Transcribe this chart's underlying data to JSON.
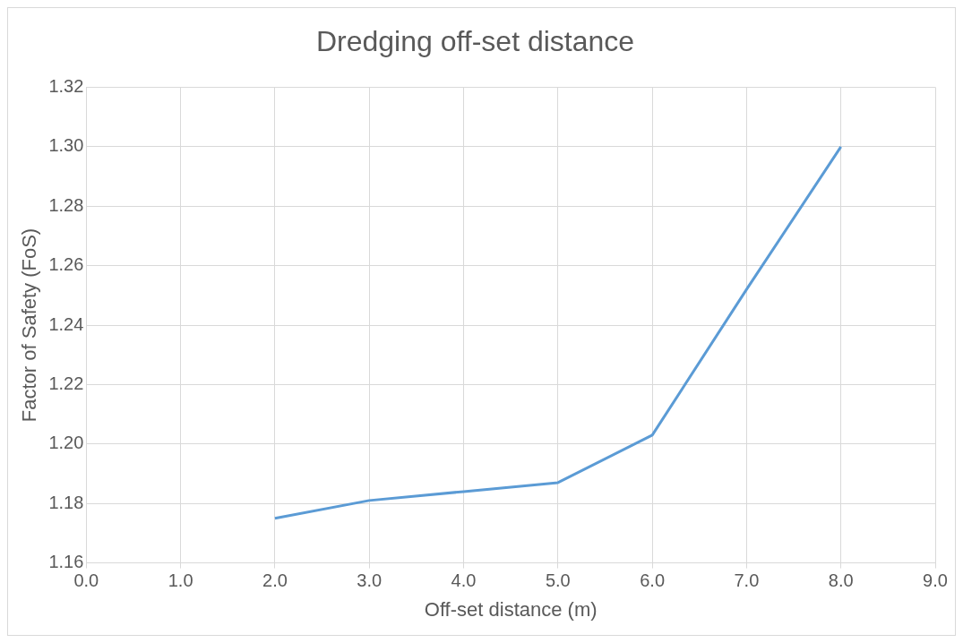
{
  "chart_data": {
    "type": "line",
    "title": "Dredging off-set distance",
    "xlabel": "Off-set distance (m)",
    "ylabel": "Factor of Safety (FoS)",
    "x": [
      2,
      3,
      4,
      5,
      6,
      7,
      8
    ],
    "series": [
      {
        "color": "#5b9bd5",
        "values": [
          1.175,
          1.181,
          1.184,
          1.187,
          1.203,
          1.252,
          1.3
        ]
      }
    ],
    "xlim": [
      0,
      9
    ],
    "xticks": [
      {
        "value": 0,
        "label": "0.0"
      },
      {
        "value": 1,
        "label": "1.0"
      },
      {
        "value": 2,
        "label": "2.0"
      },
      {
        "value": 3,
        "label": "3.0"
      },
      {
        "value": 4,
        "label": "4.0"
      },
      {
        "value": 5,
        "label": "5.0"
      },
      {
        "value": 6,
        "label": "6.0"
      },
      {
        "value": 7,
        "label": "7.0"
      },
      {
        "value": 8,
        "label": "8.0"
      },
      {
        "value": 9,
        "label": "9.0"
      }
    ],
    "ylim": [
      1.16,
      1.32
    ],
    "yticks": [
      {
        "value": 1.16,
        "label": "1.16"
      },
      {
        "value": 1.18,
        "label": "1.18"
      },
      {
        "value": 1.2,
        "label": "1.20"
      },
      {
        "value": 1.22,
        "label": "1.22"
      },
      {
        "value": 1.24,
        "label": "1.24"
      },
      {
        "value": 1.26,
        "label": "1.26"
      },
      {
        "value": 1.28,
        "label": "1.28"
      },
      {
        "value": 1.3,
        "label": "1.30"
      },
      {
        "value": 1.32,
        "label": "1.32"
      }
    ],
    "grid": true,
    "legend": false,
    "marker": "none",
    "line_style": "solid"
  }
}
